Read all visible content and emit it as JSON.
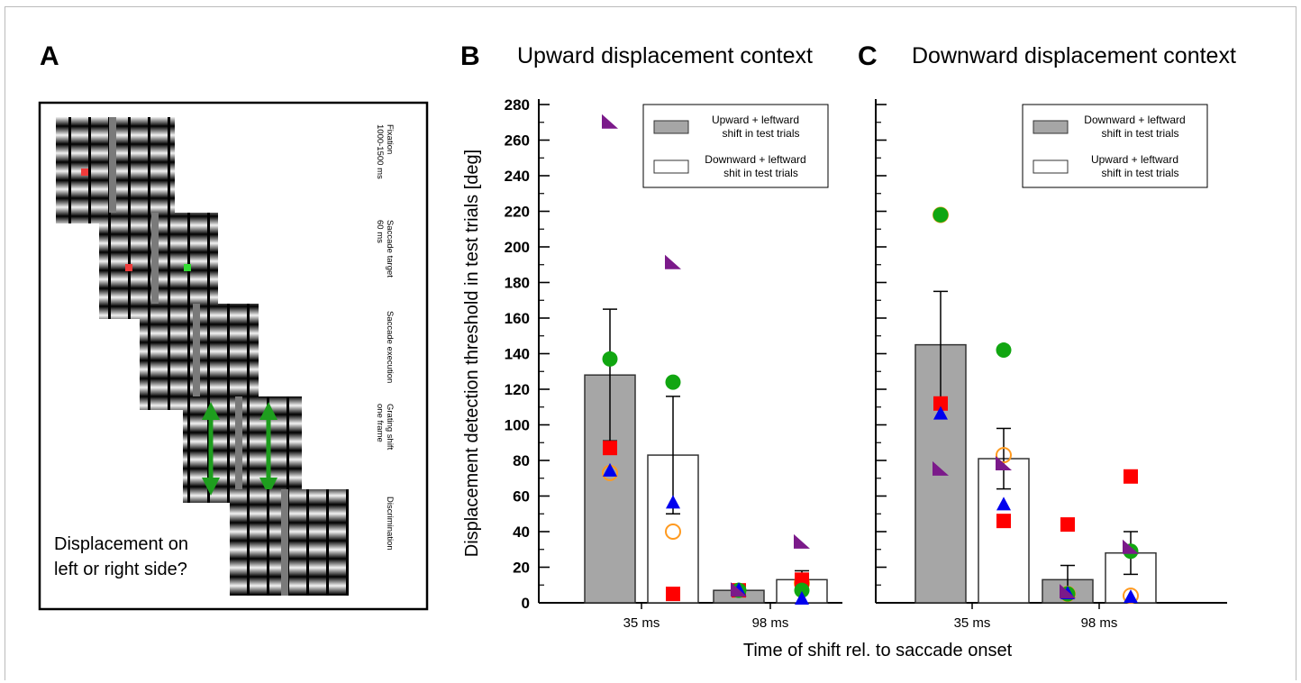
{
  "figure": {
    "panels": {
      "A": {
        "letter": "A",
        "stages": [
          {
            "line1": "Fixation",
            "line2": "1000-1500 ms"
          },
          {
            "line1": "Saccade target",
            "line2": "60 ms"
          },
          {
            "line1": "Saccade execution",
            "line2": ""
          },
          {
            "line1": "Grating shift",
            "line2": "one frame"
          },
          {
            "line1": "Discrimination",
            "line2": ""
          }
        ],
        "question_line1": "Displacement on",
        "question_line2": "left or right side?"
      },
      "B": {
        "letter": "B",
        "title": "Upward displacement context"
      },
      "C": {
        "letter": "C",
        "title": "Downward displacement context"
      }
    },
    "xlabel": "Time of shift rel. to saccade onset",
    "ylabel": "Displacement detection threshold in test trials [deg]",
    "colors": {
      "bar_gray": "#a6a6a6",
      "red": "#ff0000",
      "green": "#11a611",
      "blue": "#0000ee",
      "purple": "#7b1a8a",
      "orange": "#ff9a1f"
    }
  },
  "chart_data": [
    {
      "type": "bar",
      "panel": "B",
      "title": "Upward displacement context",
      "xlabel": "Time of shift rel. to saccade onset",
      "ylabel": "Displacement detection threshold in test trials [deg]",
      "ylim": [
        0,
        280
      ],
      "yticks": [
        0,
        20,
        40,
        60,
        80,
        100,
        120,
        140,
        160,
        180,
        200,
        220,
        240,
        260,
        280
      ],
      "categories": [
        "35 ms",
        "98 ms"
      ],
      "legend_position": "top-right",
      "series": [
        {
          "name_line1": "Upward + leftward",
          "name_line2": "shift in test trials",
          "fill": "gray",
          "means": [
            128,
            7
          ],
          "sem": [
            37,
            0
          ],
          "points": {
            "red": [
              87,
              7
            ],
            "green": [
              137,
              7
            ],
            "blue": [
              74,
              7
            ],
            "purple": [
              270,
              7
            ],
            "orange": [
              73,
              null
            ]
          }
        },
        {
          "name_line1": "Downward + leftward",
          "name_line2": "shit in test trials",
          "fill": "white",
          "means": [
            83,
            13
          ],
          "sem": [
            33,
            5
          ],
          "points": {
            "red": [
              5,
              13
            ],
            "green": [
              124,
              7
            ],
            "blue": [
              56,
              2
            ],
            "purple": [
              191,
              34
            ],
            "orange": [
              40,
              11
            ]
          }
        }
      ]
    },
    {
      "type": "bar",
      "panel": "C",
      "title": "Downward displacement context",
      "xlabel": "Time of shift rel. to saccade onset",
      "ylim": [
        0,
        280
      ],
      "categories": [
        "35 ms",
        "98 ms"
      ],
      "legend_position": "top-right",
      "series": [
        {
          "name_line1": "Downward + leftward",
          "name_line2": "shift in test trials",
          "fill": "gray",
          "means": [
            145,
            13
          ],
          "sem": [
            30,
            8
          ],
          "points": {
            "red": [
              112,
              44
            ],
            "green": [
              218,
              5
            ],
            "blue": [
              106,
              5
            ],
            "purple": [
              75,
              6
            ],
            "orange": [
              218,
              5
            ]
          }
        },
        {
          "name_line1": "Upward + leftward",
          "name_line2": "shift in test trials",
          "fill": "white",
          "means": [
            81,
            28
          ],
          "sem": [
            17,
            12
          ],
          "points": {
            "red": [
              46,
              71
            ],
            "green": [
              142,
              29
            ],
            "blue": [
              55,
              3
            ],
            "purple": [
              78,
              31
            ],
            "orange": [
              83,
              4
            ]
          }
        }
      ]
    }
  ]
}
